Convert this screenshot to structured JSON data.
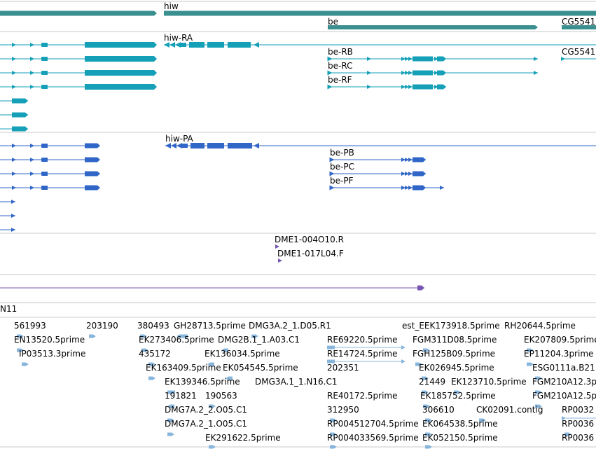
{
  "view": {
    "labels": {
      "gene_hiw": "hiw",
      "gene_be": "be",
      "gene_cg": "CG5541",
      "tx_hiw_ra": "hiw-RA",
      "tx_be_rb": "be-RB",
      "tx_cg_2": "CG5541",
      "tx_be_rc": "be-RC",
      "tx_be_rf": "be-RF",
      "tx_hiw_pa": "hiw-PA",
      "tx_be_pb": "be-PB",
      "tx_be_pc": "be-PC",
      "tx_be_pf": "be-PF",
      "clone_1": "DME1-004O10.R",
      "clone_2": "DME1-017L04.F",
      "contig": "N11"
    },
    "est_labels": [
      "561993",
      "203190",
      "380493",
      "GH28713.5prime",
      "DMG3A.2_1.D05.R1",
      "est_EEK173918.5prime",
      "RH20644.5prime",
      "EN13520.5prime",
      "EK273406.5prime",
      "DMG2B.1_1.A03.C1",
      "RE69220.5prime",
      "FGM311D08.5prime",
      "EK207809.5prime",
      "IP03513.3prime",
      "435172",
      "EK136034.5prime",
      "RE14724.5prime",
      "FGH125B09.5prime",
      "EP11204.3prime",
      "EK163409.5prime",
      "EK054545.5prime",
      "202351",
      "EK026945.5prime",
      "ESG0111a.B21",
      "EK139346.5prime",
      "DMG3A.1_1.N16.C1",
      "21449",
      "EK123710.5prime",
      "FGM210A12.3p",
      "191821",
      "190563",
      "RE40172.5prime",
      "EK185752.5prime",
      "FGM210A12.5p",
      "DMG7A.2_2.O05.C1",
      "312950",
      "306610",
      "CK02091.contig",
      "RP0032",
      "DMG7A.2_1.O05.C1",
      "RP004512704.5prime",
      "EK064538.5prime",
      "RP0036",
      "EK291622.5prime",
      "RP004033569.5prime",
      "EK052150.5prime",
      "RP0036"
    ],
    "colors": {
      "gene": "#3a8f8f",
      "mrna": "#15a0b8",
      "protein": "#2f66c7",
      "clone": "#7755b2",
      "est": "#88b5dc",
      "separator": "#c8c8c8"
    }
  }
}
